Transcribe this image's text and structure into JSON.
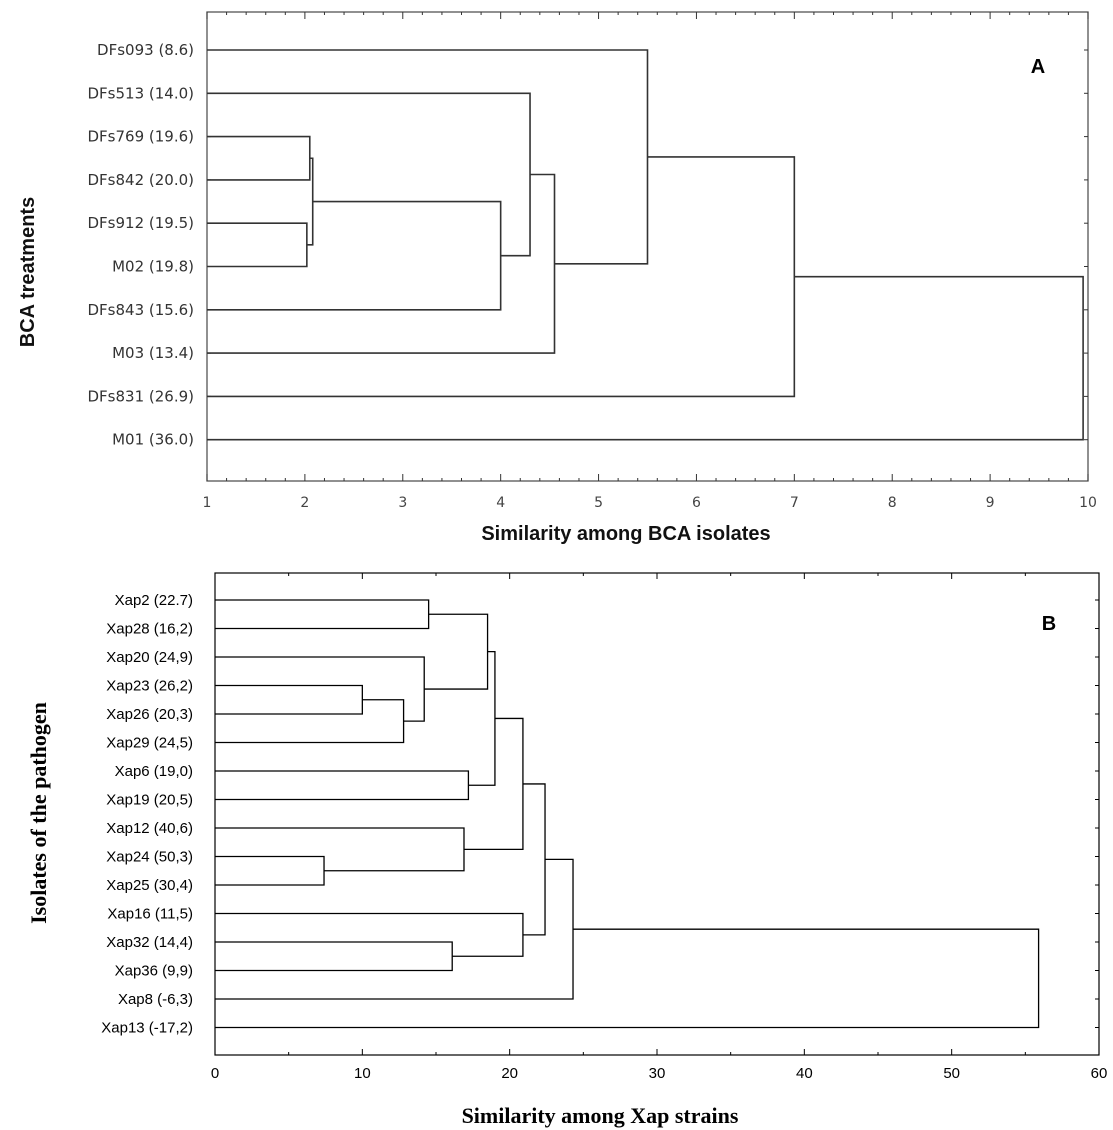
{
  "chart_data": [
    {
      "type": "dendrogram",
      "panel_label": "A",
      "xlabel": "Similarity among BCA isolates",
      "ylabel": "BCA treatments",
      "xlim": [
        1,
        10
      ],
      "ticks": [
        1,
        2,
        3,
        4,
        5,
        6,
        7,
        8,
        9,
        10
      ],
      "leaves": [
        "DFs093 (8.6)",
        "DFs513 (14.0)",
        "DFs769 (19.6)",
        "DFs842 (20.0)",
        "DFs912 (19.5)",
        "M02 (19.8)",
        "DFs843 (15.6)",
        "M03 (13.4)",
        "DFs831 (26.9)",
        "M01 (36.0)"
      ],
      "merges": [
        {
          "a": 2,
          "b": 3,
          "height": 2.05
        },
        {
          "a": 4,
          "b": 5,
          "height": 2.02
        },
        {
          "a": 10,
          "b": 11,
          "height": 2.08
        },
        {
          "a": 12,
          "b": 6,
          "height": 4.0
        },
        {
          "a": 1,
          "b": 13,
          "height": 4.3
        },
        {
          "a": 14,
          "b": 7,
          "height": 4.55
        },
        {
          "a": 0,
          "b": 15,
          "height": 5.5
        },
        {
          "a": 16,
          "b": 8,
          "height": 7.0
        },
        {
          "a": 17,
          "b": 9,
          "height": 9.95
        }
      ]
    },
    {
      "type": "dendrogram",
      "panel_label": "B",
      "xlabel": "Similarity among Xap strains",
      "ylabel": "Isolates of  the pathogen",
      "xlim": [
        0,
        60
      ],
      "ticks": [
        0,
        10,
        20,
        30,
        40,
        50,
        60
      ],
      "leaves": [
        "Xap2 (22.7)",
        "Xap28 (16,2)",
        "Xap20 (24,9)",
        "Xap23 (26,2)",
        "Xap26 (20,3)",
        "Xap29 (24,5)",
        "Xap6 (19,0)",
        "Xap19 (20,5)",
        "Xap12 (40,6)",
        "Xap24 (50,3)",
        "Xap25 (30,4)",
        "Xap16 (11,5)",
        "Xap32 (14,4)",
        "Xap36 (9,9)",
        "Xap8 (-6,3)",
        "Xap13 (-17,2)"
      ],
      "merges": [
        {
          "a": 9,
          "b": 10,
          "height": 7.4
        },
        {
          "a": 3,
          "b": 4,
          "height": 10.0
        },
        {
          "a": 17,
          "b": 5,
          "height": 12.8
        },
        {
          "a": 2,
          "b": 18,
          "height": 14.2
        },
        {
          "a": 0,
          "b": 1,
          "height": 14.5
        },
        {
          "a": 12,
          "b": 13,
          "height": 16.1
        },
        {
          "a": 8,
          "b": 16,
          "height": 16.9
        },
        {
          "a": 6,
          "b": 7,
          "height": 17.2
        },
        {
          "a": 20,
          "b": 19,
          "height": 18.5
        },
        {
          "a": 24,
          "b": 23,
          "height": 19.0
        },
        {
          "a": 11,
          "b": 21,
          "height": 20.9
        },
        {
          "a": 25,
          "b": 22,
          "height": 20.9
        },
        {
          "a": 27,
          "b": 26,
          "height": 22.4
        },
        {
          "a": 28,
          "b": 14,
          "height": 24.3
        },
        {
          "a": 29,
          "b": 15,
          "height": 55.9
        }
      ]
    }
  ]
}
